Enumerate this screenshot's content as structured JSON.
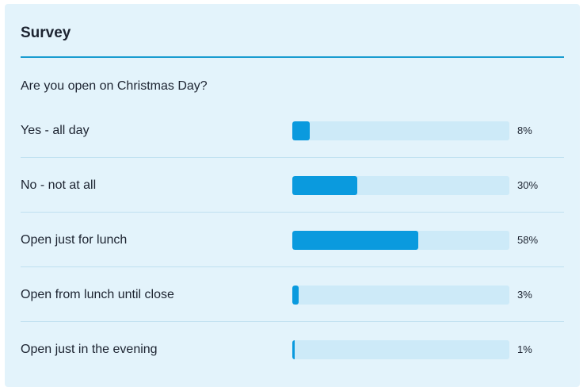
{
  "survey": {
    "title": "Survey",
    "question": "Are you open on Christmas Day?",
    "accent_color": "#1a9cd0",
    "bar_color": "#0a9ade",
    "track_color": "#cdeaf8",
    "options": [
      {
        "label": "Yes - all day",
        "percent": 8,
        "percent_label": "8%"
      },
      {
        "label": "No - not at all",
        "percent": 30,
        "percent_label": "30%"
      },
      {
        "label": "Open just for lunch",
        "percent": 58,
        "percent_label": "58%"
      },
      {
        "label": "Open from lunch until close",
        "percent": 3,
        "percent_label": "3%"
      },
      {
        "label": "Open just in the evening",
        "percent": 1,
        "percent_label": "1%"
      }
    ]
  }
}
